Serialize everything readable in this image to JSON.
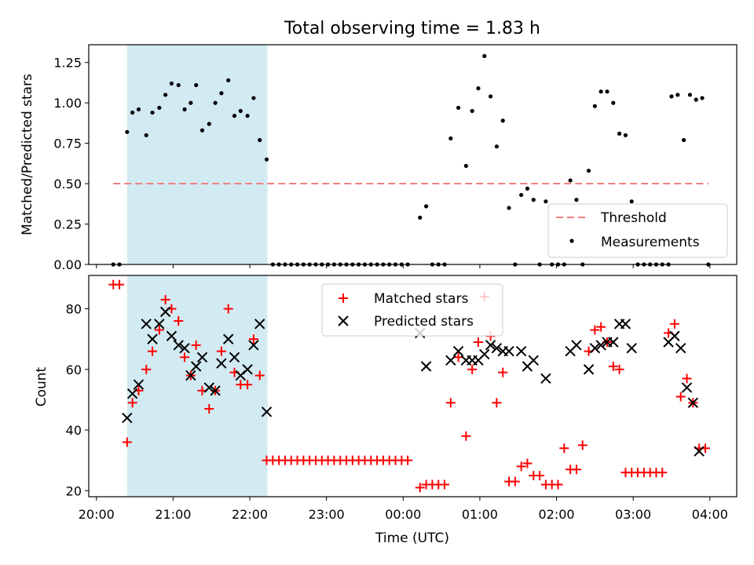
{
  "figure": {
    "title": "Total observing time = 1.83 h",
    "xlabel": "Time (UTC)",
    "x_tick_labels": [
      "20:00",
      "21:00",
      "22:00",
      "23:00",
      "00:00",
      "01:00",
      "02:00",
      "03:00",
      "04:00"
    ]
  },
  "chart_data": [
    {
      "type": "scatter",
      "title": "Total observing time = 1.83 h",
      "ylabel": "Matched/Predicted stars",
      "xlabel": "",
      "x_unit": "hours since 20:00 UTC",
      "xlim": [
        19.9,
        28.35
      ],
      "ylim": [
        0,
        1.36
      ],
      "y_ticks": [
        0.0,
        0.25,
        0.5,
        0.75,
        1.0,
        1.25
      ],
      "y_tick_labels": [
        "0.00",
        "0.25",
        "0.50",
        "0.75",
        "1.00",
        "1.25"
      ],
      "shaded_span": {
        "x0": 20.4,
        "x1": 22.23,
        "color": "#add8e6"
      },
      "legend_placement": "lower right",
      "grid": false,
      "series": [
        {
          "name": "Threshold",
          "kind": "dashed-line",
          "color": "#f08080",
          "x": [
            20.22,
            27.98
          ],
          "y": [
            0.5,
            0.5
          ]
        },
        {
          "name": "Measurements",
          "kind": "dots",
          "color": "#000000",
          "points": [
            [
              20.22,
              0.0
            ],
            [
              20.3,
              0.0
            ],
            [
              20.4,
              0.82
            ],
            [
              20.47,
              0.94
            ],
            [
              20.55,
              0.96
            ],
            [
              20.65,
              0.8
            ],
            [
              20.73,
              0.94
            ],
            [
              20.82,
              0.97
            ],
            [
              20.9,
              1.05
            ],
            [
              20.98,
              1.12
            ],
            [
              21.07,
              1.11
            ],
            [
              21.15,
              0.96
            ],
            [
              21.23,
              1.0
            ],
            [
              21.3,
              1.11
            ],
            [
              21.38,
              0.83
            ],
            [
              21.47,
              0.87
            ],
            [
              21.55,
              1.0
            ],
            [
              21.63,
              1.06
            ],
            [
              21.72,
              1.14
            ],
            [
              21.8,
              0.92
            ],
            [
              21.88,
              0.95
            ],
            [
              21.97,
              0.92
            ],
            [
              22.05,
              1.03
            ],
            [
              22.13,
              0.77
            ],
            [
              22.22,
              0.65
            ],
            [
              22.3,
              0.0
            ],
            [
              22.38,
              0.0
            ],
            [
              22.46,
              0.0
            ],
            [
              22.54,
              0.0
            ],
            [
              22.62,
              0.0
            ],
            [
              22.7,
              0.0
            ],
            [
              22.78,
              0.0
            ],
            [
              22.86,
              0.0
            ],
            [
              22.94,
              0.0
            ],
            [
              23.02,
              0.0
            ],
            [
              23.1,
              0.0
            ],
            [
              23.18,
              0.0
            ],
            [
              23.26,
              0.0
            ],
            [
              23.34,
              0.0
            ],
            [
              23.42,
              0.0
            ],
            [
              23.5,
              0.0
            ],
            [
              23.58,
              0.0
            ],
            [
              23.66,
              0.0
            ],
            [
              23.74,
              0.0
            ],
            [
              23.82,
              0.0
            ],
            [
              23.9,
              0.0
            ],
            [
              23.98,
              0.0
            ],
            [
              24.06,
              0.0
            ],
            [
              24.22,
              0.29
            ],
            [
              24.3,
              0.36
            ],
            [
              24.38,
              0.0
            ],
            [
              24.46,
              0.0
            ],
            [
              24.54,
              0.0
            ],
            [
              24.62,
              0.78
            ],
            [
              24.72,
              0.97
            ],
            [
              24.82,
              0.61
            ],
            [
              24.9,
              0.95
            ],
            [
              24.98,
              1.09
            ],
            [
              25.06,
              1.29
            ],
            [
              25.14,
              1.04
            ],
            [
              25.22,
              0.73
            ],
            [
              25.3,
              0.89
            ],
            [
              25.38,
              0.35
            ],
            [
              25.46,
              0.0
            ],
            [
              25.54,
              0.43
            ],
            [
              25.62,
              0.47
            ],
            [
              25.7,
              0.4
            ],
            [
              25.78,
              0.0
            ],
            [
              25.86,
              0.39
            ],
            [
              25.94,
              0.0
            ],
            [
              26.02,
              0.0
            ],
            [
              26.1,
              0.0
            ],
            [
              26.18,
              0.52
            ],
            [
              26.26,
              0.4
            ],
            [
              26.34,
              0.0
            ],
            [
              26.42,
              0.58
            ],
            [
              26.5,
              0.98
            ],
            [
              26.58,
              1.07
            ],
            [
              26.66,
              1.07
            ],
            [
              26.74,
              1.0
            ],
            [
              26.82,
              0.81
            ],
            [
              26.9,
              0.8
            ],
            [
              26.98,
              0.39
            ],
            [
              27.06,
              0.0
            ],
            [
              27.14,
              0.0
            ],
            [
              27.22,
              0.0
            ],
            [
              27.3,
              0.0
            ],
            [
              27.38,
              0.0
            ],
            [
              27.46,
              0.0
            ],
            [
              27.5,
              1.04
            ],
            [
              27.58,
              1.05
            ],
            [
              27.66,
              0.77
            ],
            [
              27.74,
              1.05
            ],
            [
              27.82,
              1.02
            ],
            [
              27.9,
              1.03
            ],
            [
              27.98,
              0.0
            ]
          ]
        }
      ]
    },
    {
      "type": "scatter",
      "title": "",
      "ylabel": "Count",
      "xlabel": "Time (UTC)",
      "x_unit": "hours since 20:00 UTC",
      "xlim": [
        19.9,
        28.35
      ],
      "ylim": [
        18,
        91
      ],
      "y_ticks": [
        20,
        40,
        60,
        80
      ],
      "y_tick_labels": [
        "20",
        "40",
        "60",
        "80"
      ],
      "x_tick_values": [
        20,
        21,
        22,
        23,
        24,
        25,
        26,
        27,
        28
      ],
      "shaded_span": {
        "x0": 20.4,
        "x1": 22.23,
        "color": "#add8e6"
      },
      "legend_placement": "upper center",
      "grid": false,
      "series": [
        {
          "name": "Matched stars",
          "marker": "plus",
          "color": "#ff0000",
          "points": [
            [
              20.22,
              88
            ],
            [
              20.3,
              88
            ],
            [
              20.4,
              36
            ],
            [
              20.47,
              49
            ],
            [
              20.55,
              53
            ],
            [
              20.65,
              60
            ],
            [
              20.73,
              66
            ],
            [
              20.82,
              73
            ],
            [
              20.9,
              83
            ],
            [
              20.98,
              80
            ],
            [
              21.07,
              76
            ],
            [
              21.15,
              64
            ],
            [
              21.23,
              58
            ],
            [
              21.3,
              68
            ],
            [
              21.38,
              53
            ],
            [
              21.47,
              47
            ],
            [
              21.55,
              53
            ],
            [
              21.63,
              66
            ],
            [
              21.72,
              80
            ],
            [
              21.8,
              59
            ],
            [
              21.88,
              55
            ],
            [
              21.97,
              55
            ],
            [
              22.05,
              70
            ],
            [
              22.13,
              58
            ],
            [
              22.22,
              30
            ],
            [
              22.3,
              30
            ],
            [
              22.38,
              30
            ],
            [
              22.46,
              30
            ],
            [
              22.54,
              30
            ],
            [
              22.62,
              30
            ],
            [
              22.7,
              30
            ],
            [
              22.78,
              30
            ],
            [
              22.86,
              30
            ],
            [
              22.94,
              30
            ],
            [
              23.02,
              30
            ],
            [
              23.1,
              30
            ],
            [
              23.18,
              30
            ],
            [
              23.26,
              30
            ],
            [
              23.34,
              30
            ],
            [
              23.42,
              30
            ],
            [
              23.5,
              30
            ],
            [
              23.58,
              30
            ],
            [
              23.66,
              30
            ],
            [
              23.74,
              30
            ],
            [
              23.82,
              30
            ],
            [
              23.9,
              30
            ],
            [
              23.98,
              30
            ],
            [
              24.06,
              30
            ],
            [
              24.22,
              21
            ],
            [
              24.3,
              22
            ],
            [
              24.38,
              22
            ],
            [
              24.46,
              22
            ],
            [
              24.54,
              22
            ],
            [
              24.62,
              49
            ],
            [
              24.72,
              64
            ],
            [
              24.82,
              38
            ],
            [
              24.9,
              60
            ],
            [
              24.98,
              69
            ],
            [
              25.06,
              84
            ],
            [
              25.14,
              71
            ],
            [
              25.22,
              49
            ],
            [
              25.3,
              59
            ],
            [
              25.38,
              23
            ],
            [
              25.46,
              23
            ],
            [
              25.54,
              28
            ],
            [
              25.62,
              29
            ],
            [
              25.7,
              25
            ],
            [
              25.78,
              25
            ],
            [
              25.86,
              22
            ],
            [
              25.94,
              22
            ],
            [
              26.02,
              22
            ],
            [
              26.1,
              34
            ],
            [
              26.18,
              27
            ],
            [
              26.26,
              27
            ],
            [
              26.34,
              35
            ],
            [
              26.42,
              66
            ],
            [
              26.5,
              73
            ],
            [
              26.58,
              74
            ],
            [
              26.66,
              69
            ],
            [
              26.74,
              61
            ],
            [
              26.82,
              60
            ],
            [
              26.9,
              26
            ],
            [
              26.98,
              26
            ],
            [
              27.06,
              26
            ],
            [
              27.14,
              26
            ],
            [
              27.22,
              26
            ],
            [
              27.3,
              26
            ],
            [
              27.38,
              26
            ],
            [
              27.46,
              72
            ],
            [
              27.54,
              75
            ],
            [
              27.62,
              51
            ],
            [
              27.7,
              57
            ],
            [
              27.78,
              49
            ],
            [
              27.86,
              34
            ],
            [
              27.94,
              34
            ]
          ]
        },
        {
          "name": "Predicted stars",
          "marker": "x",
          "color": "#000000",
          "points": [
            [
              20.4,
              44
            ],
            [
              20.47,
              52
            ],
            [
              20.55,
              55
            ],
            [
              20.65,
              75
            ],
            [
              20.73,
              70
            ],
            [
              20.82,
              75
            ],
            [
              20.9,
              79
            ],
            [
              20.98,
              71
            ],
            [
              21.07,
              68
            ],
            [
              21.15,
              67
            ],
            [
              21.23,
              58
            ],
            [
              21.3,
              61
            ],
            [
              21.38,
              64
            ],
            [
              21.47,
              54
            ],
            [
              21.55,
              53
            ],
            [
              21.63,
              62
            ],
            [
              21.72,
              70
            ],
            [
              21.8,
              64
            ],
            [
              21.88,
              58
            ],
            [
              21.97,
              60
            ],
            [
              22.05,
              68
            ],
            [
              22.13,
              75
            ],
            [
              22.22,
              46
            ],
            [
              24.22,
              72
            ],
            [
              24.3,
              61
            ],
            [
              24.62,
              63
            ],
            [
              24.72,
              66
            ],
            [
              24.82,
              63
            ],
            [
              24.9,
              63
            ],
            [
              24.98,
              63
            ],
            [
              25.06,
              65
            ],
            [
              25.14,
              68
            ],
            [
              25.22,
              67
            ],
            [
              25.3,
              66
            ],
            [
              25.38,
              66
            ],
            [
              25.54,
              66
            ],
            [
              25.62,
              61
            ],
            [
              25.7,
              63
            ],
            [
              25.86,
              57
            ],
            [
              26.18,
              66
            ],
            [
              26.26,
              68
            ],
            [
              26.42,
              60
            ],
            [
              26.5,
              67
            ],
            [
              26.58,
              68
            ],
            [
              26.66,
              69
            ],
            [
              26.74,
              69
            ],
            [
              26.82,
              75
            ],
            [
              26.9,
              75
            ],
            [
              26.98,
              67
            ],
            [
              27.46,
              69
            ],
            [
              27.54,
              71
            ],
            [
              27.62,
              67
            ],
            [
              27.7,
              54
            ],
            [
              27.78,
              49
            ],
            [
              27.86,
              33
            ]
          ]
        }
      ]
    }
  ]
}
